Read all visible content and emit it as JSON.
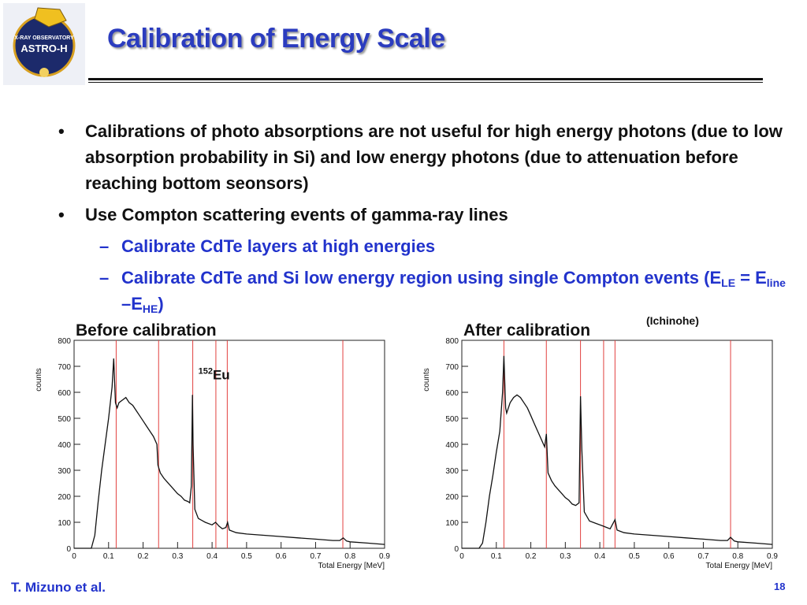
{
  "logo": {
    "text_top": "X-RAY OBSERVATORY",
    "text_main": "ASTRO-H"
  },
  "slide": {
    "title": "Calibration of Energy Scale",
    "bullet_char": "•",
    "dash_char": "–",
    "bullets": [
      "Calibrations of photo absorptions are not useful for high energy photons (due to low absorption probability in Si) and low energy photons (due to attenuation before reaching bottom seonsors)",
      "Use Compton scattering events of gamma-ray lines"
    ],
    "sub_bullets": {
      "first": "Calibrate CdTe layers at high energies",
      "second_text": "Calibrate CdTe and Si low energy region using single Compton events (E",
      "sub_le": "LE",
      "mid1": " = E",
      "sub_line": "line",
      "mid2": " –E",
      "sub_he": "HE",
      "close": ")"
    },
    "credit": "(Ichinohe)",
    "footer_author": "T. Mizuno et al.",
    "page_number": "18"
  },
  "chart_data": [
    {
      "type": "line",
      "title": "Before calibration",
      "annotation": {
        "sup": "152",
        "text": "Eu"
      },
      "xlabel": "Total Energy [MeV]",
      "ylabel": "counts",
      "xlim": [
        0,
        0.9
      ],
      "ylim": [
        0,
        800
      ],
      "xticks": [
        "0",
        "0.1",
        "0.2",
        "0.3",
        "0.4",
        "0.5",
        "0.6",
        "0.7",
        "0.8",
        "0.9"
      ],
      "yticks": [
        "0",
        "100",
        "200",
        "300",
        "400",
        "500",
        "600",
        "700",
        "800"
      ],
      "vlines": [
        0.122,
        0.245,
        0.344,
        0.411,
        0.444,
        0.779
      ],
      "line_color": "#111111",
      "vline_color": "#e2413f",
      "x": [
        0.0,
        0.03,
        0.05,
        0.06,
        0.07,
        0.08,
        0.09,
        0.1,
        0.11,
        0.115,
        0.12,
        0.125,
        0.13,
        0.14,
        0.15,
        0.16,
        0.17,
        0.18,
        0.19,
        0.2,
        0.21,
        0.22,
        0.23,
        0.24,
        0.243,
        0.25,
        0.26,
        0.27,
        0.28,
        0.29,
        0.3,
        0.31,
        0.32,
        0.33,
        0.335,
        0.34,
        0.343,
        0.345,
        0.35,
        0.36,
        0.38,
        0.4,
        0.41,
        0.42,
        0.43,
        0.44,
        0.445,
        0.45,
        0.47,
        0.5,
        0.55,
        0.6,
        0.65,
        0.7,
        0.75,
        0.77,
        0.78,
        0.79,
        0.8,
        0.85,
        0.9
      ],
      "y": [
        0,
        0,
        0,
        50,
        180,
        300,
        400,
        500,
        620,
        730,
        560,
        540,
        560,
        570,
        580,
        560,
        550,
        530,
        510,
        490,
        470,
        450,
        430,
        400,
        320,
        290,
        270,
        255,
        240,
        225,
        210,
        200,
        185,
        180,
        175,
        240,
        590,
        400,
        150,
        115,
        100,
        90,
        100,
        85,
        75,
        80,
        100,
        70,
        60,
        55,
        50,
        45,
        40,
        35,
        30,
        30,
        40,
        28,
        25,
        20,
        15
      ]
    },
    {
      "type": "line",
      "title": "After calibration",
      "xlabel": "Total Energy [MeV]",
      "ylabel": "counts",
      "xlim": [
        0,
        0.9
      ],
      "ylim": [
        0,
        800
      ],
      "xticks": [
        "0",
        "0.1",
        "0.2",
        "0.3",
        "0.4",
        "0.5",
        "0.6",
        "0.7",
        "0.8",
        "0.9"
      ],
      "yticks": [
        "0",
        "100",
        "200",
        "300",
        "400",
        "500",
        "600",
        "700",
        "800"
      ],
      "vlines": [
        0.122,
        0.245,
        0.344,
        0.411,
        0.444,
        0.779
      ],
      "line_color": "#111111",
      "vline_color": "#e2413f",
      "x": [
        0.0,
        0.03,
        0.05,
        0.06,
        0.07,
        0.08,
        0.09,
        0.1,
        0.11,
        0.118,
        0.122,
        0.127,
        0.13,
        0.14,
        0.15,
        0.16,
        0.17,
        0.18,
        0.19,
        0.2,
        0.21,
        0.22,
        0.23,
        0.24,
        0.245,
        0.25,
        0.26,
        0.27,
        0.28,
        0.29,
        0.3,
        0.31,
        0.32,
        0.33,
        0.34,
        0.344,
        0.348,
        0.355,
        0.37,
        0.39,
        0.41,
        0.42,
        0.43,
        0.444,
        0.45,
        0.47,
        0.5,
        0.55,
        0.6,
        0.65,
        0.7,
        0.75,
        0.77,
        0.779,
        0.79,
        0.8,
        0.85,
        0.9
      ],
      "y": [
        0,
        0,
        0,
        20,
        100,
        200,
        280,
        370,
        450,
        600,
        740,
        540,
        520,
        560,
        580,
        590,
        580,
        560,
        540,
        510,
        480,
        450,
        420,
        390,
        440,
        290,
        260,
        240,
        225,
        210,
        195,
        185,
        170,
        165,
        175,
        585,
        380,
        140,
        105,
        95,
        85,
        80,
        75,
        110,
        70,
        60,
        55,
        50,
        45,
        40,
        35,
        30,
        30,
        42,
        28,
        25,
        20,
        15
      ]
    }
  ]
}
